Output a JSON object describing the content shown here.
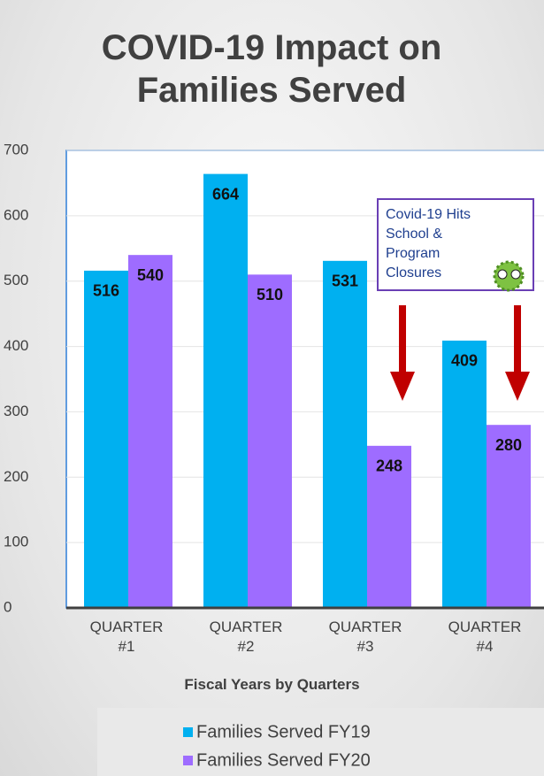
{
  "chart_data": {
    "type": "bar",
    "title": "COVID-19 Impact on Families Served",
    "xlabel": "Fiscal Years by Quarters",
    "annotation": "Covid-19 Hits School & Program Closures",
    "categories": [
      "QUARTER #1",
      "QUARTER #2",
      "QUARTER #3",
      "QUARTER #4"
    ],
    "series": [
      {
        "name": "Families Served FY19",
        "color": "#00b0f0",
        "values": [
          516,
          664,
          531,
          409
        ]
      },
      {
        "name": "Families Served FY20",
        "color": "#9e6cff",
        "values": [
          540,
          510,
          248,
          280
        ]
      }
    ],
    "ylim": [
      0,
      700
    ],
    "yticks": [
      0,
      100,
      200,
      300,
      400,
      500,
      600,
      700
    ],
    "grid": true
  }
}
